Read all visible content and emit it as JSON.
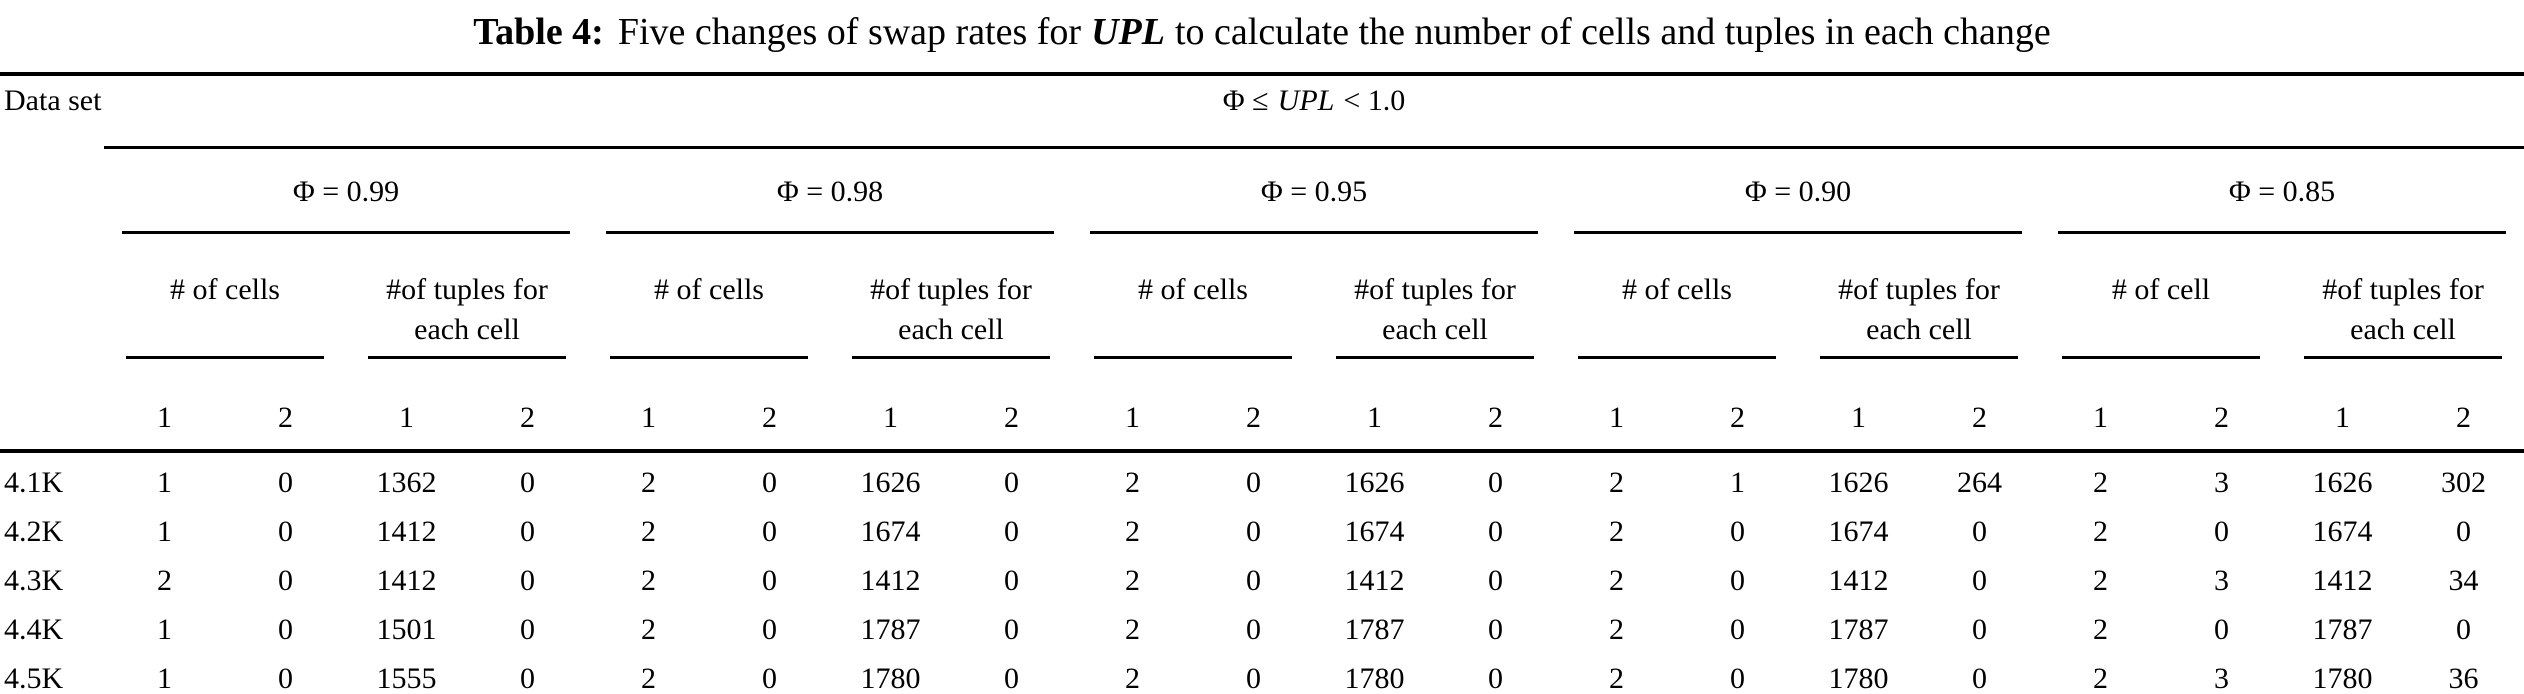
{
  "title": {
    "label": "Table 4:",
    "pre_upl": "Five changes of swap rates for",
    "upl": "UPL",
    "post_upl": "to calculate the number of cells and tuples in each change"
  },
  "table": {
    "dataset_header": "Data set",
    "span_header": {
      "pre": "Φ ≤",
      "upl": "UPL",
      "post": "< 1.0"
    },
    "groups": [
      {
        "phi_label": "Φ = 0.99",
        "cells_label": "# of cells",
        "tuples_label_line1": "#of tuples for",
        "tuples_label_line2": "each cell"
      },
      {
        "phi_label": "Φ = 0.98",
        "cells_label": "# of cells",
        "tuples_label_line1": "#of tuples for",
        "tuples_label_line2": "each cell"
      },
      {
        "phi_label": "Φ = 0.95",
        "cells_label": "# of cells",
        "tuples_label_line1": "#of tuples for",
        "tuples_label_line2": "each cell"
      },
      {
        "phi_label": "Φ = 0.90",
        "cells_label": "# of cells",
        "tuples_label_line1": "#of tuples for",
        "tuples_label_line2": "each cell"
      },
      {
        "phi_label": "Φ = 0.85",
        "cells_label": "# of cell",
        "tuples_label_line1": "#of tuples for",
        "tuples_label_line2": "each cell"
      }
    ],
    "column_numbers": [
      "1",
      "2",
      "1",
      "2",
      "1",
      "2",
      "1",
      "2",
      "1",
      "2",
      "1",
      "2",
      "1",
      "2",
      "1",
      "2",
      "1",
      "2",
      "1",
      "2"
    ],
    "rows": [
      {
        "label": "4.1K",
        "values": [
          "1",
          "0",
          "1362",
          "0",
          "2",
          "0",
          "1626",
          "0",
          "2",
          "0",
          "1626",
          "0",
          "2",
          "1",
          "1626",
          "264",
          "2",
          "3",
          "1626",
          "302"
        ]
      },
      {
        "label": "4.2K",
        "values": [
          "1",
          "0",
          "1412",
          "0",
          "2",
          "0",
          "1674",
          "0",
          "2",
          "0",
          "1674",
          "0",
          "2",
          "0",
          "1674",
          "0",
          "2",
          "0",
          "1674",
          "0"
        ]
      },
      {
        "label": "4.3K",
        "values": [
          "2",
          "0",
          "1412",
          "0",
          "2",
          "0",
          "1412",
          "0",
          "2",
          "0",
          "1412",
          "0",
          "2",
          "0",
          "1412",
          "0",
          "2",
          "3",
          "1412",
          "34"
        ]
      },
      {
        "label": "4.4K",
        "values": [
          "1",
          "0",
          "1501",
          "0",
          "2",
          "0",
          "1787",
          "0",
          "2",
          "0",
          "1787",
          "0",
          "2",
          "0",
          "1787",
          "0",
          "2",
          "0",
          "1787",
          "0"
        ]
      },
      {
        "label": "4.5K",
        "values": [
          "1",
          "0",
          "1555",
          "0",
          "2",
          "0",
          "1780",
          "0",
          "2",
          "0",
          "1780",
          "0",
          "2",
          "0",
          "1780",
          "0",
          "2",
          "3",
          "1780",
          "36"
        ]
      }
    ]
  },
  "colors": {
    "text": "#000000",
    "background": "#ffffff",
    "rule": "#000000"
  }
}
